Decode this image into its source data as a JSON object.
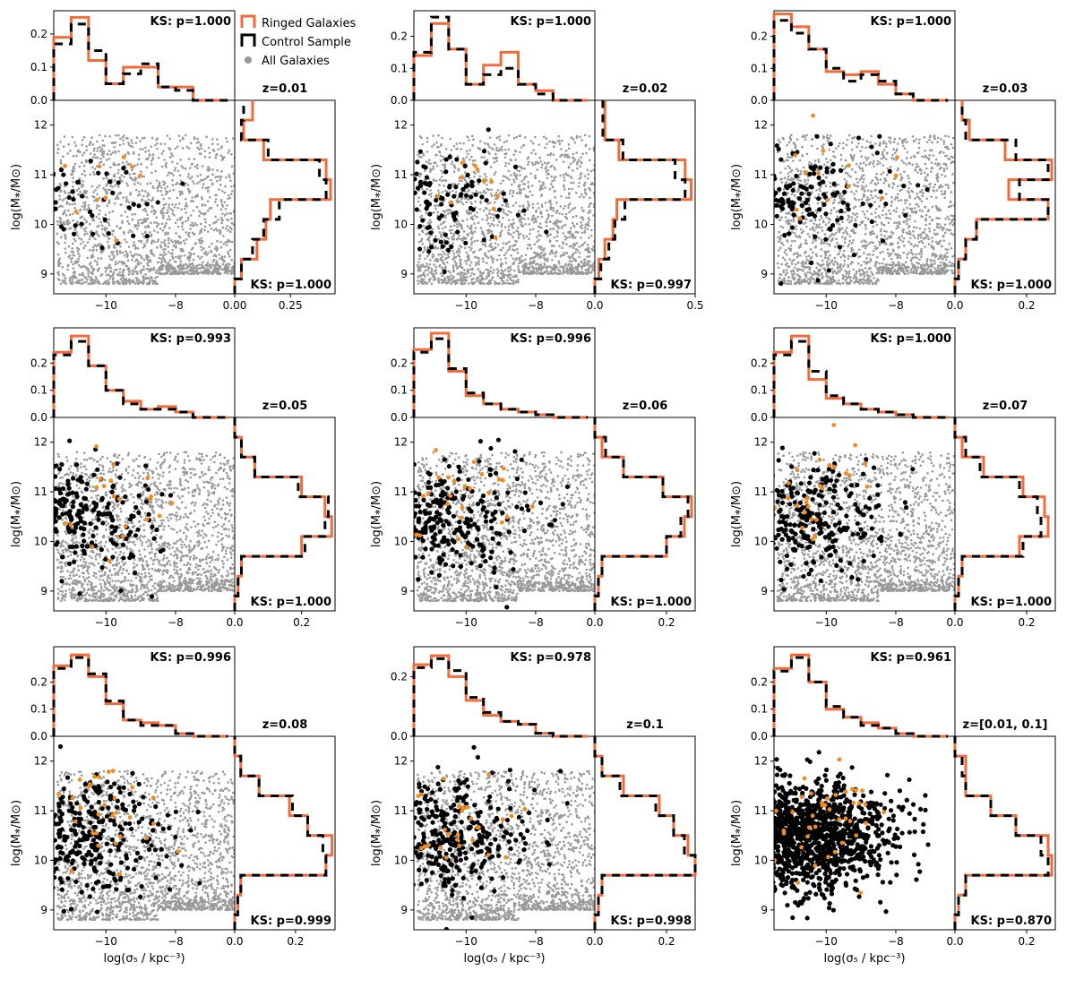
{
  "figure": {
    "xlabel": "log(σ₅ / kpc⁻³)",
    "ylabel": "log(M⁎/M⊙)",
    "legend": {
      "placement": "top, between first and second columns",
      "entries": [
        {
          "label": "Ringed Galaxies",
          "style": "step",
          "color": "#f26b3a"
        },
        {
          "label": "Control Sample",
          "style": "step",
          "color": "#000000"
        },
        {
          "label": "All Galaxies",
          "style": "dot",
          "color": "#999999"
        }
      ]
    },
    "colors": {
      "ringed": "#f26b3a",
      "ringed_dot": "#f28a1e",
      "control": "#000000",
      "all": "#999999"
    }
  },
  "chart_data": [
    {
      "type": "scatter",
      "panel": "z=0.01",
      "title": "z=0.01",
      "ks_top": "KS: p=1.000",
      "ks_right": "KS: p=1.000",
      "xlim": [
        -11.5,
        -6.3
      ],
      "ylim": [
        8.6,
        12.5
      ],
      "x_ticks": [
        "−10",
        "−8"
      ],
      "y_ticks": [
        "9",
        "10",
        "11",
        "12"
      ],
      "top_hist": {
        "ylim": [
          0,
          0.27
        ],
        "ticks": [
          "0.0",
          "0.1",
          "0.2"
        ],
        "edges": [
          -11.5,
          -11.0,
          -10.5,
          -10.0,
          -9.5,
          -9.0,
          -8.5,
          -8.0,
          -7.5,
          -7.0,
          -6.5
        ],
        "ringed": [
          0.19,
          0.25,
          0.12,
          0.05,
          0.1,
          0.1,
          0.04,
          0.04,
          0.0,
          0.0
        ],
        "control": [
          0.17,
          0.23,
          0.15,
          0.05,
          0.08,
          0.11,
          0.04,
          0.03,
          0.0,
          0.0
        ]
      },
      "right_hist": {
        "xlim": [
          0,
          0.45
        ],
        "ticks": [
          "0.00",
          "0.25"
        ],
        "edges": [
          8.6,
          8.9,
          9.3,
          9.7,
          10.1,
          10.5,
          10.9,
          11.3,
          11.7,
          12.1,
          12.5
        ],
        "ringed": [
          0.0,
          0.03,
          0.1,
          0.14,
          0.16,
          0.43,
          0.41,
          0.13,
          0.04,
          0.08
        ],
        "control": [
          0.0,
          0.03,
          0.08,
          0.13,
          0.2,
          0.41,
          0.38,
          0.15,
          0.03,
          0.04
        ]
      },
      "scatter": {
        "all_count": 1800,
        "control_count": 60,
        "ringed_count": 10,
        "spread": 0.35
      }
    },
    {
      "type": "scatter",
      "panel": "z=0.02",
      "title": "z=0.02",
      "ks_top": "KS: p=1.000",
      "ks_right": "KS: p=0.997",
      "xlim": [
        -11.5,
        -6.3
      ],
      "ylim": [
        8.6,
        12.5
      ],
      "x_ticks": [
        "−10",
        "−8"
      ],
      "y_ticks": [
        "9",
        "10",
        "11",
        "12"
      ],
      "top_hist": {
        "ylim": [
          0,
          0.28
        ],
        "ticks": [
          "0.0",
          "0.1",
          "0.2"
        ],
        "edges": [
          -11.5,
          -11.0,
          -10.5,
          -10.0,
          -9.5,
          -9.0,
          -8.5,
          -8.0,
          -7.5,
          -7.0,
          -6.5
        ],
        "ringed": [
          0.14,
          0.24,
          0.16,
          0.05,
          0.11,
          0.15,
          0.05,
          0.03,
          0.0,
          0.0
        ],
        "control": [
          0.15,
          0.26,
          0.16,
          0.05,
          0.08,
          0.1,
          0.05,
          0.02,
          0.0,
          0.0
        ]
      },
      "right_hist": {
        "xlim": [
          0,
          0.5
        ],
        "ticks": [
          "0.0",
          "0.5"
        ],
        "edges": [
          8.6,
          8.9,
          9.3,
          9.7,
          10.1,
          10.5,
          10.9,
          11.3,
          11.7,
          12.1,
          12.5
        ],
        "ringed": [
          0.0,
          0.02,
          0.05,
          0.09,
          0.11,
          0.48,
          0.45,
          0.12,
          0.05,
          0.05
        ],
        "control": [
          0.0,
          0.03,
          0.07,
          0.1,
          0.15,
          0.45,
          0.4,
          0.14,
          0.04,
          0.04
        ]
      },
      "scatter": {
        "all_count": 1900,
        "control_count": 110,
        "ringed_count": 12,
        "spread": 0.35
      }
    },
    {
      "type": "scatter",
      "panel": "z=0.03",
      "title": "z=0.03",
      "ks_top": "KS: p=1.000",
      "ks_right": "KS: p=1.000",
      "xlim": [
        -11.5,
        -6.3
      ],
      "ylim": [
        8.6,
        12.5
      ],
      "x_ticks": [
        "−10",
        "−8"
      ],
      "y_ticks": [
        "9",
        "10",
        "11",
        "12"
      ],
      "top_hist": {
        "ylim": [
          0,
          0.28
        ],
        "ticks": [
          "0.0",
          "0.1",
          "0.2"
        ],
        "edges": [
          -11.5,
          -11.0,
          -10.5,
          -10.0,
          -9.5,
          -9.0,
          -8.5,
          -8.0,
          -7.5,
          -7.0,
          -6.5
        ],
        "ringed": [
          0.27,
          0.23,
          0.16,
          0.09,
          0.08,
          0.09,
          0.05,
          0.02,
          0.0,
          0.0
        ],
        "control": [
          0.25,
          0.21,
          0.16,
          0.1,
          0.06,
          0.08,
          0.06,
          0.02,
          0.0,
          0.0
        ]
      },
      "right_hist": {
        "xlim": [
          0,
          0.28
        ],
        "ticks": [
          "0.0",
          "0.2"
        ],
        "edges": [
          8.6,
          8.9,
          9.3,
          9.7,
          10.1,
          10.5,
          10.9,
          11.3,
          11.7,
          12.1,
          12.5
        ],
        "ringed": [
          0.0,
          0.01,
          0.03,
          0.06,
          0.26,
          0.15,
          0.27,
          0.14,
          0.04,
          0.02
        ],
        "control": [
          0.0,
          0.01,
          0.03,
          0.06,
          0.26,
          0.18,
          0.26,
          0.17,
          0.03,
          0.02
        ]
      },
      "scatter": {
        "all_count": 1900,
        "control_count": 150,
        "ringed_count": 15,
        "spread": 0.38
      }
    },
    {
      "type": "scatter",
      "panel": "z=0.05",
      "title": "z=0.05",
      "ks_top": "KS: p=0.993",
      "ks_right": "KS: p=1.000",
      "xlim": [
        -11.5,
        -6.3
      ],
      "ylim": [
        8.6,
        12.5
      ],
      "x_ticks": [
        "−10",
        "−8"
      ],
      "y_ticks": [
        "9",
        "10",
        "11",
        "12"
      ],
      "top_hist": {
        "ylim": [
          0,
          0.33
        ],
        "ticks": [
          "0.0",
          "0.1",
          "0.2"
        ],
        "edges": [
          -11.5,
          -11.0,
          -10.5,
          -10.0,
          -9.5,
          -9.0,
          -8.5,
          -8.0,
          -7.5,
          -7.0,
          -6.5
        ],
        "ringed": [
          0.24,
          0.3,
          0.19,
          0.1,
          0.06,
          0.03,
          0.04,
          0.02,
          0.0,
          0.0
        ],
        "control": [
          0.23,
          0.28,
          0.19,
          0.1,
          0.05,
          0.03,
          0.03,
          0.02,
          0.0,
          0.0
        ]
      },
      "right_hist": {
        "xlim": [
          0,
          0.3
        ],
        "ticks": [
          "0.0",
          "0.2"
        ],
        "edges": [
          8.6,
          8.9,
          9.3,
          9.7,
          10.1,
          10.5,
          10.9,
          11.3,
          11.7,
          12.1,
          12.5
        ],
        "ringed": [
          0.0,
          0.01,
          0.02,
          0.2,
          0.29,
          0.27,
          0.2,
          0.06,
          0.02,
          0.0
        ],
        "control": [
          0.0,
          0.01,
          0.02,
          0.21,
          0.27,
          0.28,
          0.19,
          0.06,
          0.02,
          0.0
        ]
      },
      "scatter": {
        "all_count": 2000,
        "control_count": 240,
        "ringed_count": 22,
        "spread": 0.42
      }
    },
    {
      "type": "scatter",
      "panel": "z=0.06",
      "title": "z=0.06",
      "ks_top": "KS: p=0.996",
      "ks_right": "KS: p=1.000",
      "xlim": [
        -11.5,
        -6.3
      ],
      "ylim": [
        8.6,
        12.5
      ],
      "x_ticks": [
        "−10",
        "−8"
      ],
      "y_ticks": [
        "9",
        "10",
        "11",
        "12"
      ],
      "top_hist": {
        "ylim": [
          0,
          0.33
        ],
        "ticks": [
          "0.0",
          "0.1",
          "0.2"
        ],
        "edges": [
          -11.5,
          -11.0,
          -10.5,
          -10.0,
          -9.5,
          -9.0,
          -8.5,
          -8.0,
          -7.5,
          -7.0,
          -6.5
        ],
        "ringed": [
          0.25,
          0.31,
          0.17,
          0.08,
          0.05,
          0.03,
          0.02,
          0.01,
          0.0,
          0.0
        ],
        "control": [
          0.24,
          0.29,
          0.18,
          0.09,
          0.05,
          0.03,
          0.02,
          0.01,
          0.0,
          0.0
        ]
      },
      "right_hist": {
        "xlim": [
          0,
          0.28
        ],
        "ticks": [
          "0.0",
          "0.2"
        ],
        "edges": [
          8.6,
          8.9,
          9.3,
          9.7,
          10.1,
          10.5,
          10.9,
          11.3,
          11.7,
          12.1,
          12.5
        ],
        "ringed": [
          0.0,
          0.01,
          0.02,
          0.2,
          0.25,
          0.27,
          0.19,
          0.08,
          0.02,
          0.0
        ],
        "control": [
          0.0,
          0.01,
          0.02,
          0.2,
          0.24,
          0.26,
          0.19,
          0.08,
          0.03,
          0.0
        ]
      },
      "scatter": {
        "all_count": 2000,
        "control_count": 300,
        "ringed_count": 26,
        "spread": 0.45
      }
    },
    {
      "type": "scatter",
      "panel": "z=0.07",
      "title": "z=0.07",
      "ks_top": "KS: p=1.000",
      "ks_right": "KS: p=1.000",
      "xlim": [
        -11.5,
        -6.3
      ],
      "ylim": [
        8.6,
        12.5
      ],
      "x_ticks": [
        "−10",
        "−8"
      ],
      "y_ticks": [
        "9",
        "10",
        "11",
        "12"
      ],
      "top_hist": {
        "ylim": [
          0,
          0.33
        ],
        "ticks": [
          "0.0",
          "0.1",
          "0.2"
        ],
        "edges": [
          -11.5,
          -11.0,
          -10.5,
          -10.0,
          -9.5,
          -9.0,
          -8.5,
          -8.0,
          -7.5,
          -7.0,
          -6.5
        ],
        "ringed": [
          0.24,
          0.3,
          0.14,
          0.07,
          0.05,
          0.03,
          0.02,
          0.01,
          0.0,
          0.0
        ],
        "control": [
          0.23,
          0.28,
          0.17,
          0.08,
          0.05,
          0.03,
          0.02,
          0.01,
          0.0,
          0.0
        ]
      },
      "right_hist": {
        "xlim": [
          0,
          0.28
        ],
        "ticks": [
          "0.0",
          "0.2"
        ],
        "edges": [
          8.6,
          8.9,
          9.3,
          9.7,
          10.1,
          10.5,
          10.9,
          11.3,
          11.7,
          12.1,
          12.5
        ],
        "ringed": [
          0.0,
          0.01,
          0.02,
          0.18,
          0.26,
          0.25,
          0.19,
          0.08,
          0.02,
          0.0
        ],
        "control": [
          0.0,
          0.01,
          0.02,
          0.19,
          0.24,
          0.23,
          0.18,
          0.07,
          0.03,
          0.0
        ]
      },
      "scatter": {
        "all_count": 2000,
        "control_count": 320,
        "ringed_count": 28,
        "spread": 0.45
      }
    },
    {
      "type": "scatter",
      "panel": "z=0.08",
      "title": "z=0.08",
      "ks_top": "KS: p=0.996",
      "ks_right": "KS: p=0.999",
      "xlim": [
        -11.5,
        -6.3
      ],
      "ylim": [
        8.6,
        12.5
      ],
      "x_ticks": [
        "−10",
        "−8"
      ],
      "y_ticks": [
        "9",
        "10",
        "11",
        "12"
      ],
      "top_hist": {
        "ylim": [
          0,
          0.33
        ],
        "ticks": [
          "0.0",
          "0.1",
          "0.2"
        ],
        "edges": [
          -11.5,
          -11.0,
          -10.5,
          -10.0,
          -9.5,
          -9.0,
          -8.5,
          -8.0,
          -7.5,
          -7.0,
          -6.5
        ],
        "ringed": [
          0.26,
          0.3,
          0.22,
          0.12,
          0.06,
          0.05,
          0.04,
          0.01,
          0.0,
          0.0
        ],
        "control": [
          0.25,
          0.29,
          0.23,
          0.13,
          0.06,
          0.04,
          0.04,
          0.01,
          0.0,
          0.0
        ]
      },
      "right_hist": {
        "xlim": [
          0,
          0.33
        ],
        "ticks": [
          "0.0",
          "0.2"
        ],
        "edges": [
          8.6,
          8.9,
          9.3,
          9.7,
          10.1,
          10.5,
          10.9,
          11.3,
          11.7,
          12.1,
          12.5
        ],
        "ringed": [
          0.0,
          0.01,
          0.02,
          0.3,
          0.32,
          0.24,
          0.18,
          0.08,
          0.02,
          0.0
        ],
        "control": [
          0.0,
          0.01,
          0.02,
          0.3,
          0.29,
          0.24,
          0.19,
          0.08,
          0.02,
          0.0
        ]
      },
      "scatter": {
        "all_count": 2000,
        "control_count": 360,
        "ringed_count": 30,
        "spread": 0.45
      }
    },
    {
      "type": "scatter",
      "panel": "z=0.1",
      "title": "z=0.1",
      "ks_top": "KS: p=0.978",
      "ks_right": "KS: p=0.998",
      "xlim": [
        -11.5,
        -6.3
      ],
      "ylim": [
        8.6,
        12.5
      ],
      "x_ticks": [
        "−10",
        "−8"
      ],
      "y_ticks": [
        "9",
        "10",
        "11",
        "12"
      ],
      "top_hist": {
        "ylim": [
          0,
          0.3
        ],
        "ticks": [
          "0.0",
          "0.2"
        ],
        "edges": [
          -11.5,
          -11.0,
          -10.5,
          -10.0,
          -9.5,
          -9.0,
          -8.5,
          -8.0,
          -7.5,
          -7.0,
          -6.5
        ],
        "ringed": [
          0.24,
          0.27,
          0.2,
          0.12,
          0.07,
          0.05,
          0.04,
          0.01,
          0.0,
          0.0
        ],
        "control": [
          0.23,
          0.26,
          0.22,
          0.13,
          0.08,
          0.05,
          0.04,
          0.01,
          0.0,
          0.0
        ]
      },
      "right_hist": {
        "xlim": [
          0,
          0.28
        ],
        "ticks": [
          "0.0",
          "0.2"
        ],
        "edges": [
          8.6,
          8.9,
          9.3,
          9.7,
          10.1,
          10.5,
          10.9,
          11.3,
          11.7,
          12.1,
          12.5
        ],
        "ringed": [
          0.0,
          0.01,
          0.02,
          0.28,
          0.26,
          0.22,
          0.18,
          0.08,
          0.02,
          0.0
        ],
        "control": [
          0.0,
          0.01,
          0.02,
          0.28,
          0.25,
          0.22,
          0.17,
          0.07,
          0.02,
          0.0
        ]
      },
      "scatter": {
        "all_count": 2000,
        "control_count": 380,
        "ringed_count": 30,
        "spread": 0.45
      }
    },
    {
      "type": "scatter",
      "panel": "z=[0.01, 0.1]",
      "title": "z=[0.01, 0.1]",
      "ks_top": "KS: p=0.961",
      "ks_right": "KS: p=0.870",
      "xlim": [
        -11.5,
        -6.3
      ],
      "ylim": [
        8.6,
        12.5
      ],
      "x_ticks": [
        "−10",
        "−8"
      ],
      "y_ticks": [
        "9",
        "10",
        "11",
        "12"
      ],
      "top_hist": {
        "ylim": [
          0,
          0.33
        ],
        "ticks": [
          "0.0",
          "0.1",
          "0.2"
        ],
        "edges": [
          -11.5,
          -11.0,
          -10.5,
          -10.0,
          -9.5,
          -9.0,
          -8.5,
          -8.0,
          -7.5,
          -7.0,
          -6.5
        ],
        "ringed": [
          0.25,
          0.3,
          0.2,
          0.1,
          0.07,
          0.05,
          0.03,
          0.01,
          0.0,
          0.0
        ],
        "control": [
          0.24,
          0.29,
          0.2,
          0.11,
          0.07,
          0.04,
          0.03,
          0.01,
          0.0,
          0.0
        ]
      },
      "right_hist": {
        "xlim": [
          0,
          0.28
        ],
        "ticks": [
          "0.0",
          "0.2"
        ],
        "edges": [
          8.6,
          8.9,
          9.3,
          9.7,
          10.1,
          10.5,
          10.9,
          11.3,
          11.7,
          12.1,
          12.5
        ],
        "ringed": [
          0.0,
          0.01,
          0.03,
          0.27,
          0.26,
          0.17,
          0.1,
          0.03,
          0.03,
          0.0
        ],
        "control": [
          0.0,
          0.01,
          0.03,
          0.26,
          0.24,
          0.17,
          0.1,
          0.03,
          0.02,
          0.0
        ]
      },
      "scatter": {
        "all_count": 0,
        "control_count": 1400,
        "ringed_count": 40,
        "spread": 0.55
      }
    }
  ]
}
